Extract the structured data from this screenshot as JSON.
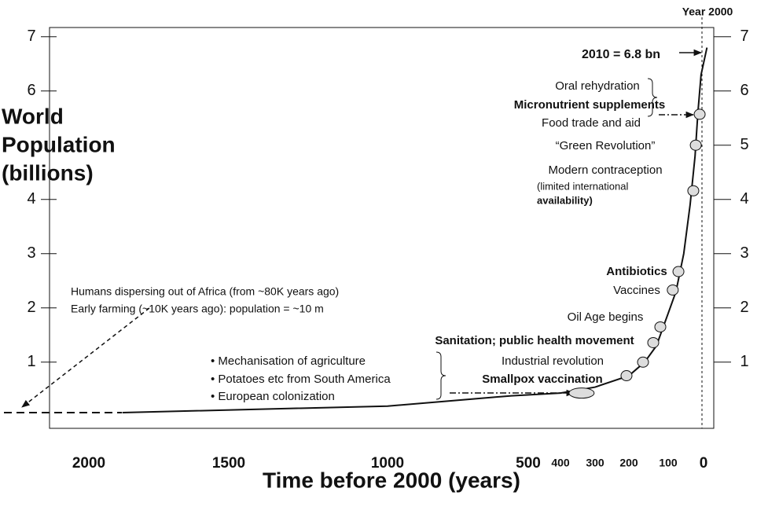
{
  "chart_data": {
    "type": "line",
    "ylabel": [
      "World",
      "Population",
      "(billions)"
    ],
    "xlabel": "Time before 2000 (years)",
    "xlim": [
      2140,
      -30
    ],
    "xticks": [
      2000,
      1500,
      1000,
      500,
      400,
      300,
      200,
      100,
      0
    ],
    "ylim": [
      -0.22,
      7.17
    ],
    "yticks": [
      1,
      2,
      3,
      4,
      6,
      7
    ],
    "y2lim": [
      -0.22,
      7.17
    ],
    "y2ticks": [
      1,
      2,
      3,
      4,
      5,
      6,
      7
    ],
    "series": [
      {
        "color": "#111111",
        "x": [
          1880,
          1000,
          560,
          400,
          300,
          200,
          160,
          130,
          100,
          78,
          56,
          38,
          24,
          16,
          7,
          -10
        ],
        "values": [
          0.07,
          0.19,
          0.38,
          0.43,
          0.54,
          0.75,
          1.0,
          1.3,
          1.9,
          2.3,
          3.0,
          3.9,
          4.8,
          5.6,
          6.3,
          6.8
        ]
      }
    ],
    "markers": {
      "x": [
        339,
        207,
        164,
        138,
        120,
        87,
        71,
        29,
        22,
        11
      ],
      "values": [
        0.43,
        0.75,
        1.0,
        1.36,
        1.65,
        2.33,
        2.67,
        4.16,
        5.0,
        5.57
      ]
    },
    "annotations": [
      "Year 2000",
      "2010 = 6.8 bn",
      "Oral rehydration",
      "Micronutrient  supplements",
      "Food trade and aid",
      "“Green Revolution”",
      "Modern contraception",
      "(limited international",
      "availability)",
      "Antibiotics",
      "Vaccines",
      "Oil Age begins",
      "Sanitation; public health movement",
      "Industrial revolution",
      "Smallpox vaccination",
      "• Mechanisation of agriculture",
      "• Potatoes etc from South America",
      "• European colonization",
      "Humans dispersing out of Africa (from ~80K years ago)",
      "Early farming (~10K years ago): population = ~10 m"
    ]
  }
}
